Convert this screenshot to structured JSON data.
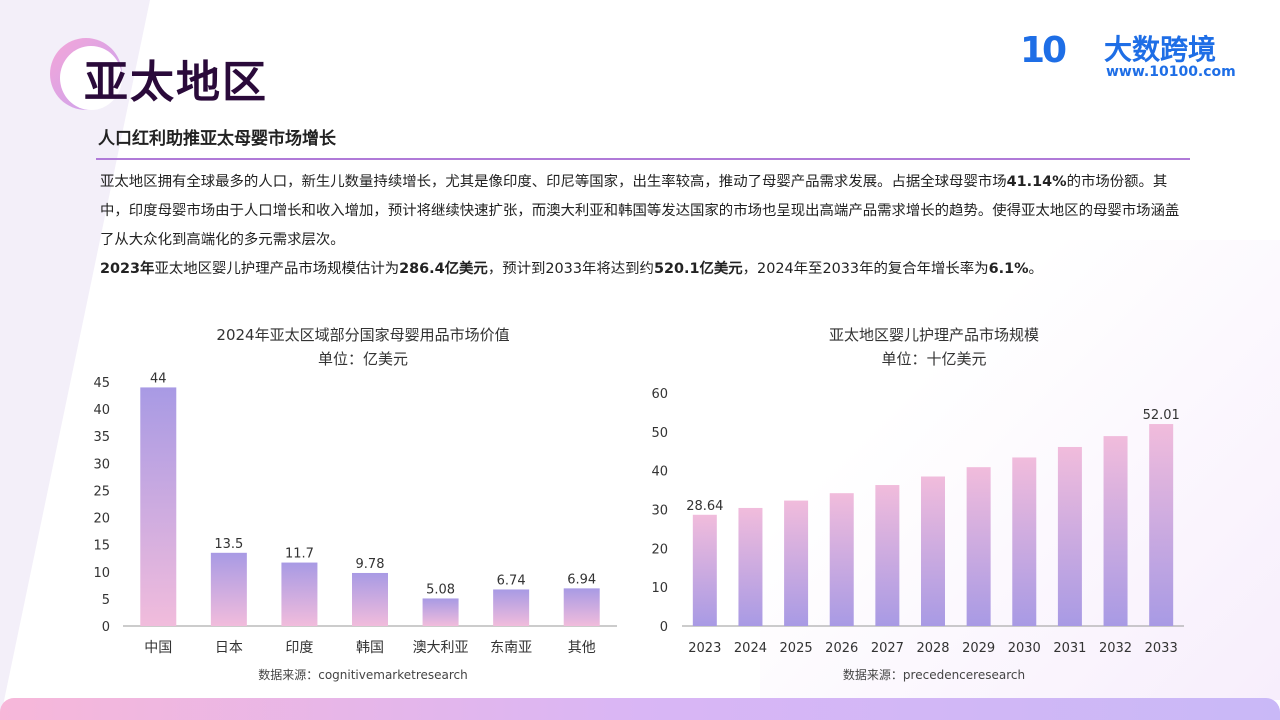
{
  "header": {
    "title": "亚太地区",
    "subtitle": "人口红利助推亚太母婴市场增长"
  },
  "logo": {
    "mark": "10",
    "brand": "大数跨境",
    "url": "www.10100.com"
  },
  "body": {
    "p1": "亚太地区拥有全球最多的人口，新生儿数量持续增长，尤其是像印度、印尼等国家，出生率较高，推动了母婴产品需求发展。占据全球母婴市场",
    "p1_bold": "41.14%",
    "p1_end": "的市场份额。其中，印度母婴市场由于人口增长和收入增加，预计将继续快速扩张，而澳大利亚和韩国等发达国家的市场也呈现出高端产品需求增长的趋势。使得亚太地区的母婴市场涵盖了从大众化到高端化的多元需求层次。",
    "p2_bold1": "2023年",
    "p2_a": "亚太地区婴儿护理产品市场规模估计为",
    "p2_bold2": "286.4亿美元",
    "p2_b": "，预计到2033年将达到约",
    "p2_bold3": "520.1亿美元",
    "p2_c": "，2024年至2033年的复合年增长率为",
    "p2_bold4": "6.1%",
    "p2_d": "。"
  },
  "chart_data": [
    {
      "type": "bar",
      "title": "2024年亚太区域部分国家母婴用品市场价值",
      "subtitle": "单位：亿美元",
      "categories": [
        "中国",
        "日本",
        "印度",
        "韩国",
        "澳大利亚",
        "东南亚",
        "其他"
      ],
      "values": [
        44,
        13.5,
        11.7,
        9.78,
        5.08,
        6.74,
        6.94
      ],
      "data_labels": [
        "44",
        "13.5",
        "11.7",
        "9.78",
        "5.08",
        "6.74",
        "6.94"
      ],
      "yticks": [
        0,
        5,
        10,
        15,
        20,
        25,
        30,
        35,
        40,
        45
      ],
      "ylim": [
        0,
        45
      ],
      "source": "数据来源：cognitivemarketresearch",
      "colors": [
        "#a89ae4",
        "#f1bcdc"
      ]
    },
    {
      "type": "bar",
      "title": "亚太地区婴儿护理产品市场规模",
      "subtitle": "单位：十亿美元",
      "categories": [
        "2023",
        "2024",
        "2025",
        "2026",
        "2027",
        "2028",
        "2029",
        "2030",
        "2031",
        "2032",
        "2033"
      ],
      "values": [
        28.64,
        30.4,
        32.3,
        34.2,
        36.3,
        38.5,
        40.9,
        43.4,
        46.1,
        48.9,
        52.01
      ],
      "data_labels": [
        "28.64",
        "",
        "",
        "",
        "",
        "",
        "",
        "",
        "",
        "",
        "52.01"
      ],
      "yticks": [
        0,
        10,
        20,
        30,
        40,
        50,
        60
      ],
      "ylim": [
        0,
        60
      ],
      "source": "数据来源：precedenceresearch",
      "colors": [
        "#f1bcdc",
        "#a89ae4"
      ]
    }
  ]
}
